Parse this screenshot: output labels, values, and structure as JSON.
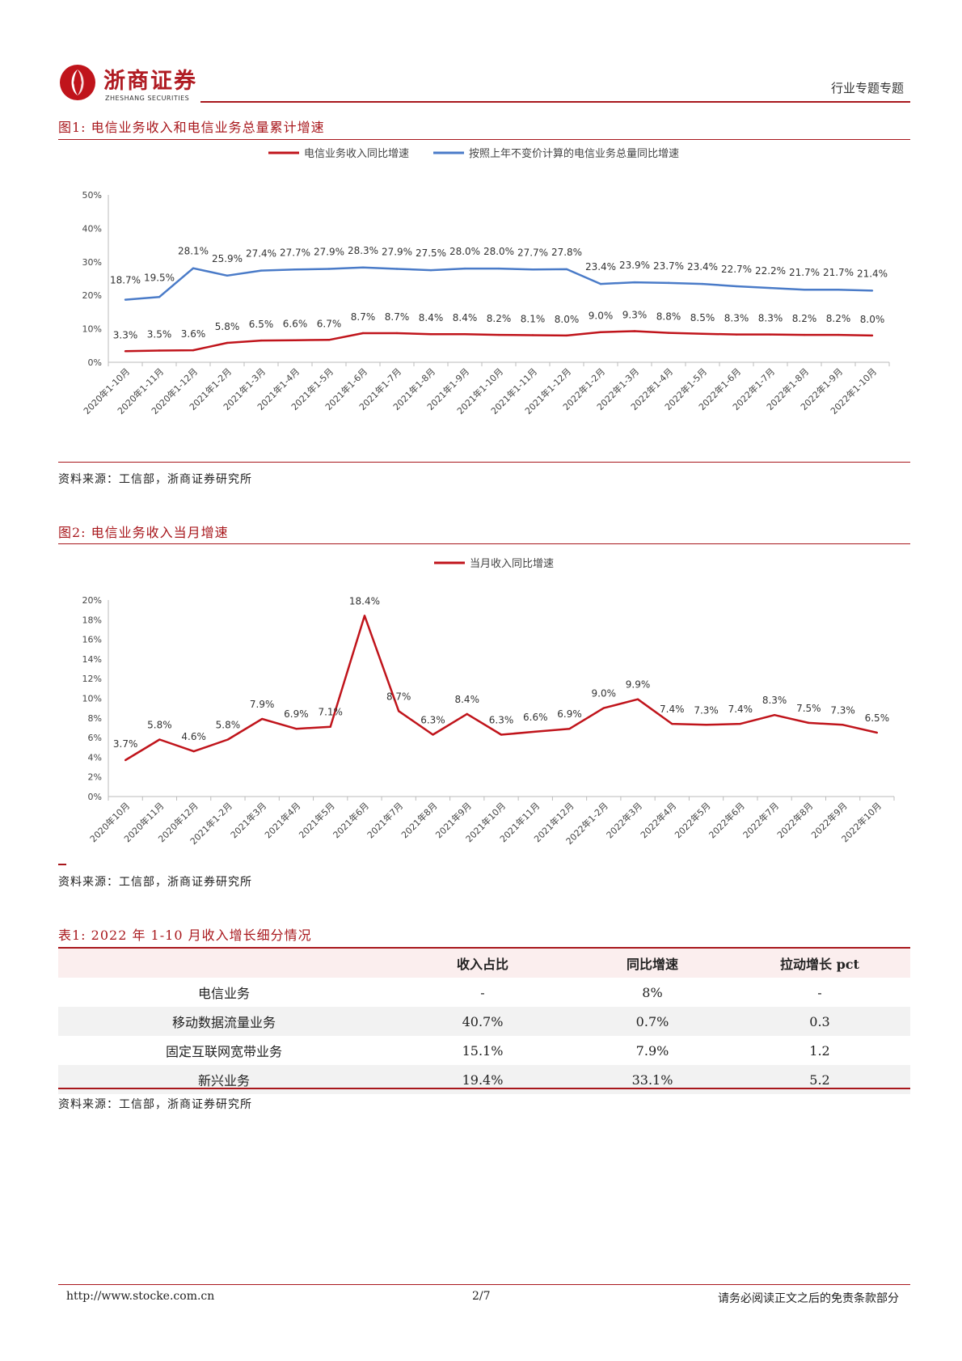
{
  "header": {
    "company_cn": "浙商证券",
    "company_en": "ZHESHANG SECURITIES",
    "doc_type": "行业专题专题"
  },
  "figure1": {
    "title": "图1:  电信业务收入和电信业务总量累计增速",
    "source": "资料来源：工信部，浙商证券研究所"
  },
  "figure2": {
    "title": "图2:  电信业务收入当月增速",
    "source": "资料来源：工信部，浙商证券研究所"
  },
  "table1": {
    "title": "表1:  2022 年 1-10 月收入增长细分情况",
    "headers": [
      "",
      "收入占比",
      "同比增速",
      "拉动增长 pct"
    ],
    "rows": [
      [
        "电信业务",
        "-",
        "8%",
        "-"
      ],
      [
        "移动数据流量业务",
        "40.7%",
        "0.7%",
        "0.3"
      ],
      [
        "固定互联网宽带业务",
        "15.1%",
        "7.9%",
        "1.2"
      ],
      [
        "新兴业务",
        "19.4%",
        "33.1%",
        "5.2"
      ]
    ],
    "source": "资料来源：工信部，浙商证券研究所"
  },
  "footer": {
    "url": "http://www.stocke.com.cn",
    "page": "2/7",
    "disclaimer": "请务必阅读正文之后的免责条款部分"
  },
  "colors": {
    "red": "#c0141b",
    "blue": "#4a7bc8",
    "brand": "#a8171c"
  },
  "chart_data": [
    {
      "type": "line",
      "categories": [
        "2020年1-10月",
        "2020年1-11月",
        "2020年1-12月",
        "2021年1-2月",
        "2021年1-3月",
        "2021年1-4月",
        "2021年1-5月",
        "2021年1-6月",
        "2021年1-7月",
        "2021年1-8月",
        "2021年1-9月",
        "2021年1-10月",
        "2021年1-11月",
        "2021年1-12月",
        "2022年1-2月",
        "2022年1-3月",
        "2022年1-4月",
        "2022年1-5月",
        "2022年1-6月",
        "2022年1-7月",
        "2022年1-8月",
        "2022年1-9月",
        "2022年1-10月"
      ],
      "series": [
        {
          "name": "电信业务收入同比增速",
          "color": "#c0141b",
          "values": [
            3.3,
            3.5,
            3.6,
            5.8,
            6.5,
            6.6,
            6.7,
            8.7,
            8.7,
            8.4,
            8.4,
            8.2,
            8.1,
            8.0,
            9.0,
            9.3,
            8.8,
            8.5,
            8.3,
            8.3,
            8.2,
            8.2,
            8.0
          ]
        },
        {
          "name": "按照上年不变价计算的电信业务总量同比增速",
          "color": "#4a7bc8",
          "values": [
            18.7,
            19.5,
            28.1,
            25.9,
            27.4,
            27.7,
            27.9,
            28.3,
            27.9,
            27.5,
            28.0,
            28.0,
            27.7,
            27.8,
            23.4,
            23.9,
            23.7,
            23.4,
            22.7,
            22.2,
            21.7,
            21.7,
            21.4
          ]
        }
      ],
      "ylim": [
        0,
        50
      ],
      "yticks": [
        0,
        10,
        20,
        30,
        40,
        50
      ],
      "ytick_labels": [
        "0%",
        "10%",
        "20%",
        "30%",
        "40%",
        "50%"
      ],
      "legend": "top-center"
    },
    {
      "type": "line",
      "categories": [
        "2020年10月",
        "2020年11月",
        "2020年12月",
        "2021年1-2月",
        "2021年3月",
        "2021年4月",
        "2021年5月",
        "2021年6月",
        "2021年7月",
        "2021年8月",
        "2021年9月",
        "2021年10月",
        "2021年11月",
        "2021年12月",
        "2022年1-2月",
        "2022年3月",
        "2022年4月",
        "2022年5月",
        "2022年6月",
        "2022年7月",
        "2022年8月",
        "2022年9月",
        "2022年10月"
      ],
      "series": [
        {
          "name": "当月收入同比增速",
          "color": "#c0141b",
          "values": [
            3.7,
            5.8,
            4.6,
            5.8,
            7.9,
            6.9,
            7.1,
            18.4,
            8.7,
            6.3,
            8.4,
            6.3,
            6.6,
            6.9,
            9.0,
            9.9,
            7.4,
            7.3,
            7.4,
            8.3,
            7.5,
            7.3,
            6.5
          ]
        }
      ],
      "ylim": [
        0,
        20
      ],
      "yticks": [
        0,
        2,
        4,
        6,
        8,
        10,
        12,
        14,
        16,
        18,
        20
      ],
      "ytick_labels": [
        "0%",
        "2%",
        "4%",
        "6%",
        "8%",
        "10%",
        "12%",
        "14%",
        "16%",
        "18%",
        "20%"
      ],
      "legend": "top-center"
    }
  ]
}
